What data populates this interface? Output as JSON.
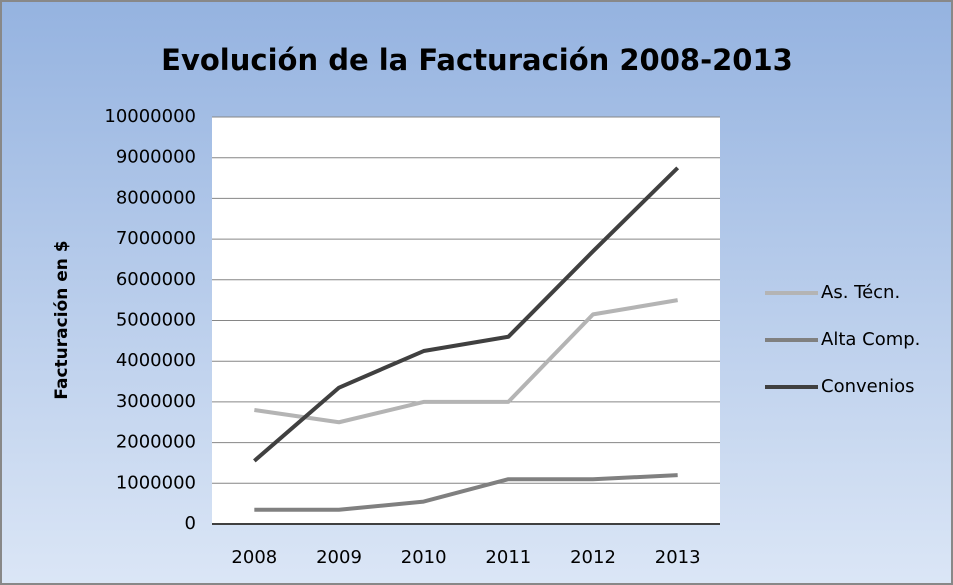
{
  "chart_data": {
    "type": "line",
    "title": "Evolución de la Facturación 2008-2013",
    "y_label": "Facturación en $",
    "categories": [
      "2008",
      "2009",
      "2010",
      "2011",
      "2012",
      "2013"
    ],
    "series": [
      {
        "name": "As. Técn.",
        "color": "#b4b4b4",
        "values": [
          2800000,
          2500000,
          3000000,
          3000000,
          5150000,
          5500000
        ]
      },
      {
        "name": "Alta Comp.",
        "color": "#808080",
        "values": [
          350000,
          350000,
          550000,
          1100000,
          1100000,
          1200000
        ]
      },
      {
        "name": "Convenios",
        "color": "#404040",
        "values": [
          1550000,
          3350000,
          4250000,
          4600000,
          6700000,
          8750000
        ]
      }
    ],
    "ylim": [
      0,
      10000000
    ],
    "yticks": [
      0,
      1000000,
      2000000,
      3000000,
      4000000,
      5000000,
      6000000,
      7000000,
      8000000,
      9000000,
      10000000
    ],
    "grid": true,
    "legend": "right"
  }
}
